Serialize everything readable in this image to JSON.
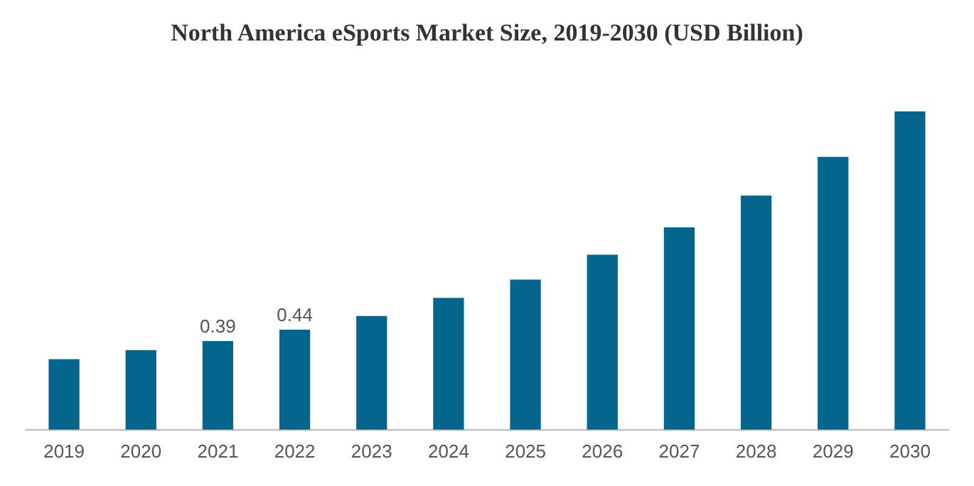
{
  "chart_data": {
    "type": "bar",
    "title": "North America eSports Market Size, 2019-2030 (USD Billion)",
    "tick_labels": "x",
    "categories": [
      "2019",
      "2020",
      "2021",
      "2022",
      "2023",
      "2024",
      "2025",
      "2026",
      "2027",
      "2028",
      "2029",
      "2030"
    ],
    "values": [
      0.31,
      0.35,
      0.39,
      0.44,
      0.5,
      0.58,
      0.66,
      0.77,
      0.89,
      1.03,
      1.2,
      1.4
    ],
    "value_labels": [
      null,
      null,
      "0.39",
      "0.44",
      null,
      null,
      null,
      null,
      null,
      null,
      null,
      null
    ],
    "color": "#05668d",
    "grid": false,
    "legend": false
  }
}
